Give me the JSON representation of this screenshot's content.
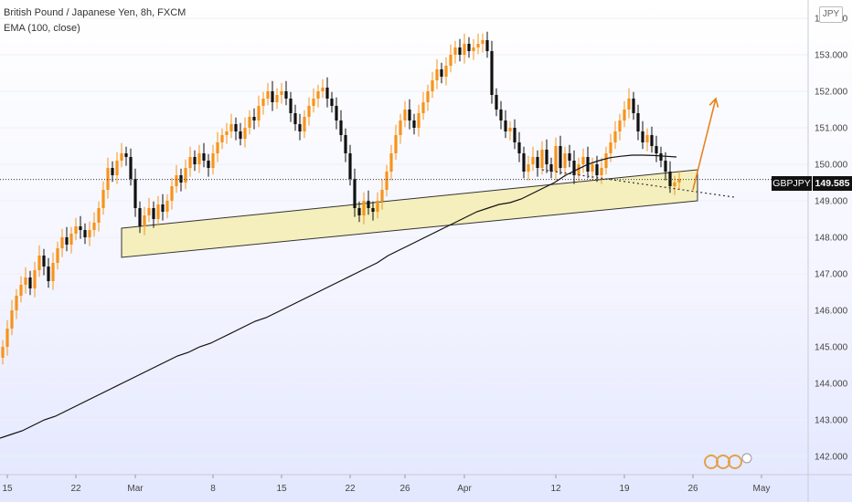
{
  "header": {
    "title": "British Pound / Japanese Yen, 8h, FXCM",
    "indicator": "EMA (100, close)"
  },
  "currency_badge": "JPY",
  "price_tag": {
    "symbol": "GBPJPY",
    "value": "149.585"
  },
  "colors": {
    "up": "#f7931a",
    "down": "#111111",
    "ema": "#111111",
    "zone_fill": "#f3eeb8",
    "arrow": "#e8821e",
    "price_line": "#333333"
  },
  "chart_data": {
    "type": "candlestick",
    "title": "British Pound / Japanese Yen, 8h, FXCM",
    "ylim": [
      141.5,
      154.3
    ],
    "y_ticks": [
      142,
      143,
      144,
      145,
      146,
      147,
      148,
      149,
      150,
      151,
      152,
      153,
      154
    ],
    "y_tick_labels": [
      "142.000",
      "143.000",
      "144.000",
      "145.000",
      "146.000",
      "147.000",
      "148.000",
      "149.000",
      "150.000",
      "151.000",
      "152.000",
      "153.000",
      "154.000"
    ],
    "x_ticks": [
      {
        "label": "15",
        "i": 1
      },
      {
        "label": "22",
        "i": 16
      },
      {
        "label": "Mar",
        "i": 29
      },
      {
        "label": "8",
        "i": 46
      },
      {
        "label": "15",
        "i": 61
      },
      {
        "label": "22",
        "i": 76
      },
      {
        "label": "26",
        "i": 88
      },
      {
        "label": "Apr",
        "i": 101
      },
      {
        "label": "12",
        "i": 121
      },
      {
        "label": "19",
        "i": 136
      },
      {
        "label": "26",
        "i": 151
      },
      {
        "label": "May",
        "i": 166
      }
    ],
    "closes": [
      145.0,
      145.5,
      146.0,
      146.4,
      146.7,
      146.9,
      146.6,
      147.1,
      147.5,
      147.2,
      146.8,
      147.3,
      147.7,
      148.0,
      147.8,
      148.1,
      148.3,
      148.2,
      148.0,
      148.2,
      148.4,
      148.8,
      149.3,
      149.9,
      149.7,
      150.1,
      150.3,
      150.2,
      149.6,
      148.8,
      148.3,
      148.6,
      148.8,
      148.5,
      148.9,
      148.7,
      149.0,
      149.4,
      149.7,
      149.5,
      149.9,
      150.2,
      150.0,
      150.3,
      150.1,
      149.9,
      150.3,
      150.6,
      150.8,
      150.9,
      151.1,
      150.9,
      150.7,
      151.0,
      151.3,
      151.2,
      151.6,
      151.8,
      152.0,
      151.7,
      151.9,
      152.0,
      151.8,
      151.4,
      151.1,
      150.9,
      151.3,
      151.6,
      151.8,
      152.0,
      152.1,
      151.8,
      151.6,
      151.2,
      150.8,
      150.3,
      149.6,
      148.8,
      148.6,
      149.0,
      148.8,
      148.7,
      149.0,
      149.3,
      149.8,
      150.3,
      150.8,
      151.2,
      151.5,
      151.2,
      151.0,
      151.4,
      151.7,
      152.0,
      152.3,
      152.6,
      152.4,
      152.7,
      153.0,
      153.2,
      153.0,
      153.3,
      153.1,
      153.2,
      153.3,
      153.4,
      153.1,
      151.9,
      151.5,
      151.2,
      150.9,
      151.0,
      150.6,
      150.3,
      149.8,
      150.0,
      150.2,
      149.9,
      150.4,
      150.0,
      149.8,
      150.5,
      149.9,
      150.3,
      150.1,
      149.7,
      150.0,
      150.2,
      149.8,
      150.0,
      149.7,
      149.9,
      150.3,
      150.6,
      150.9,
      151.2,
      151.5,
      151.8,
      151.4,
      150.9,
      150.6,
      150.8,
      150.5,
      150.3,
      150.1,
      149.8,
      149.4,
      149.5,
      149.6
    ],
    "ema_100": [
      142.5,
      142.6,
      142.7,
      142.85,
      143.0,
      143.1,
      143.25,
      143.4,
      143.55,
      143.7,
      143.85,
      144.0,
      144.15,
      144.3,
      144.45,
      144.6,
      144.75,
      144.85,
      145.0,
      145.1,
      145.25,
      145.4,
      145.55,
      145.7,
      145.8,
      145.95,
      146.1,
      146.25,
      146.4,
      146.55,
      146.7,
      146.85,
      147.0,
      147.15,
      147.3,
      147.5,
      147.65,
      147.8,
      147.95,
      148.1,
      148.25,
      148.4,
      148.55,
      148.7,
      148.8,
      148.9,
      148.95,
      149.05,
      149.2,
      149.35,
      149.5,
      149.7,
      149.85,
      150.0,
      150.1,
      150.18,
      150.22,
      150.25,
      150.25,
      150.24,
      150.22,
      150.2
    ],
    "last_price": 149.585,
    "zone": {
      "top": [
        [
          26,
          148.25
        ],
        [
          152,
          149.85
        ]
      ],
      "bottom": [
        [
          26,
          147.45
        ],
        [
          152,
          149.0
        ]
      ]
    },
    "forecast_arrow": {
      "from": [
        151,
        149.3
      ],
      "to": [
        156,
        151.8
      ]
    }
  }
}
